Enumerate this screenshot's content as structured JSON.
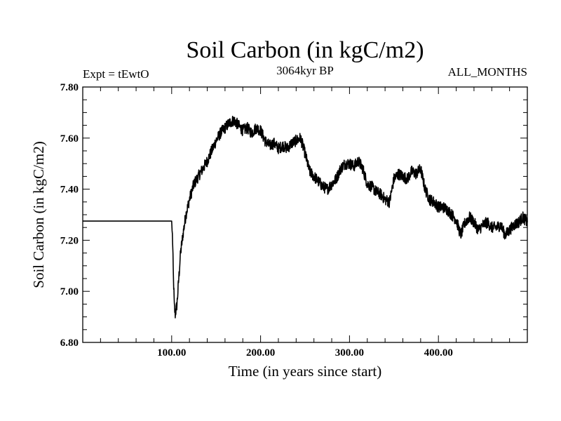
{
  "chart_data": {
    "type": "line",
    "title": "Soil Carbon (in kgC/m2)",
    "subtitle_left": "Expt = tEwtO",
    "subtitle_center": "3064kyr BP",
    "subtitle_right": "ALL_MONTHS",
    "xlabel": "Time (in years since start)",
    "ylabel": "Soil Carbon (in kgC/m2)",
    "xlim": [
      0,
      500
    ],
    "ylim": [
      6.8,
      7.8
    ],
    "x_ticks": [
      100,
      200,
      300,
      400
    ],
    "x_tick_labels": [
      "100.00",
      "200.00",
      "300.00",
      "400.00"
    ],
    "y_ticks": [
      6.8,
      7.0,
      7.2,
      7.4,
      7.6,
      7.8
    ],
    "y_tick_labels": [
      "6.80",
      "7.00",
      "7.20",
      "7.40",
      "7.60",
      "7.80"
    ],
    "line_color": "#000000",
    "series": [
      {
        "name": "Soil Carbon",
        "x": [
          0,
          100,
          101,
          102,
          103,
          104,
          106,
          108,
          110,
          113,
          116,
          120,
          125,
          130,
          135,
          140,
          145,
          150,
          155,
          160,
          165,
          170,
          175,
          180,
          185,
          190,
          195,
          200,
          205,
          210,
          215,
          220,
          225,
          230,
          235,
          240,
          245,
          250,
          255,
          260,
          265,
          270,
          275,
          280,
          285,
          290,
          295,
          300,
          305,
          310,
          315,
          320,
          325,
          330,
          335,
          340,
          345,
          350,
          355,
          360,
          365,
          370,
          375,
          380,
          385,
          390,
          395,
          400,
          405,
          410,
          415,
          420,
          425,
          430,
          435,
          440,
          445,
          450,
          455,
          460,
          465,
          470,
          475,
          480,
          485,
          490,
          495,
          500
        ],
        "values": [
          7.275,
          7.275,
          7.2,
          7.05,
          6.94,
          6.91,
          6.95,
          7.05,
          7.15,
          7.23,
          7.3,
          7.36,
          7.42,
          7.45,
          7.48,
          7.51,
          7.55,
          7.59,
          7.62,
          7.64,
          7.66,
          7.67,
          7.65,
          7.63,
          7.64,
          7.62,
          7.64,
          7.63,
          7.59,
          7.57,
          7.58,
          7.56,
          7.57,
          7.56,
          7.58,
          7.59,
          7.6,
          7.54,
          7.47,
          7.45,
          7.43,
          7.41,
          7.4,
          7.42,
          7.44,
          7.48,
          7.5,
          7.5,
          7.49,
          7.51,
          7.48,
          7.42,
          7.41,
          7.39,
          7.38,
          7.36,
          7.35,
          7.44,
          7.46,
          7.45,
          7.44,
          7.47,
          7.46,
          7.48,
          7.4,
          7.36,
          7.35,
          7.33,
          7.33,
          7.32,
          7.3,
          7.28,
          7.22,
          7.27,
          7.29,
          7.27,
          7.24,
          7.26,
          7.27,
          7.25,
          7.25,
          7.26,
          7.22,
          7.24,
          7.26,
          7.27,
          7.29,
          7.27
        ]
      }
    ]
  }
}
